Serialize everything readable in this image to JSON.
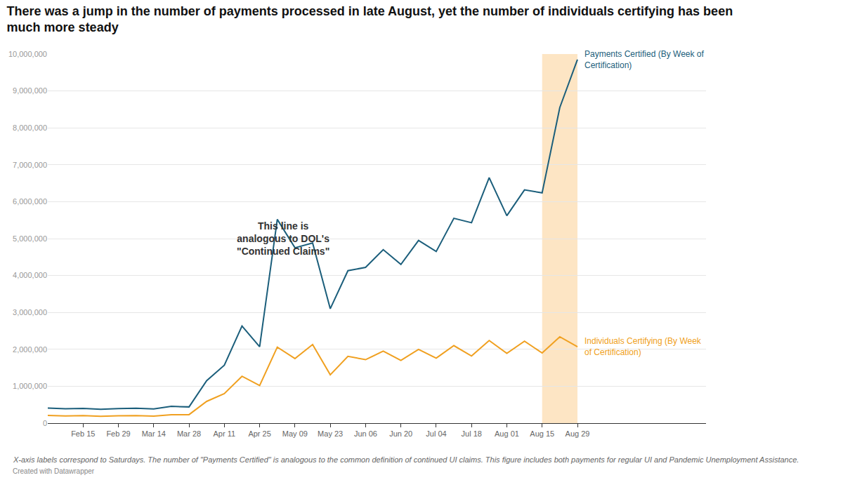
{
  "chart_data": {
    "type": "line",
    "title": "There was a jump in the number of payments processed in late August, yet the number of individuals certifying has been much more steady",
    "annotations": [
      "This line is analogous to DOL's \"Continued Claims\""
    ],
    "notes": "X-axis labels correspond to Saturdays. The number of \"Payments Certified\" is analogous to the common definition of continued UI claims. This figure includes both payments for regular UI and Pandemic Unemployment Assistance.",
    "credit": "Created with Datawrapper",
    "categories": [
      null,
      null,
      "Feb 15",
      null,
      "Feb 29",
      null,
      "Mar 14",
      null,
      "Mar 28",
      null,
      "Apr 11",
      null,
      "Apr 25",
      null,
      "May 09",
      null,
      "May 23",
      null,
      "Jun 06",
      null,
      "Jun 20",
      null,
      "Jul 04",
      null,
      "Jul 18",
      null,
      "Aug 01",
      null,
      "Aug 15",
      null,
      "Aug 29"
    ],
    "series": [
      {
        "name": "Payments Certified (By Week of Certification)",
        "color": "#1b5e7b",
        "values": [
          410000,
          390000,
          400000,
          375000,
          395000,
          405000,
          385000,
          455000,
          440000,
          1150000,
          1570000,
          2630000,
          2070000,
          5520000,
          4750000,
          4880000,
          3100000,
          4130000,
          4220000,
          4700000,
          4300000,
          4950000,
          4650000,
          5550000,
          5430000,
          6650000,
          5620000,
          6320000,
          6240000,
          8550000,
          9850000
        ]
      },
      {
        "name": "Individuals Certifying (By Week of Certification)",
        "color": "#f0a020",
        "values": [
          210000,
          195000,
          205000,
          185000,
          200000,
          205000,
          190000,
          230000,
          230000,
          590000,
          800000,
          1270000,
          1020000,
          2060000,
          1750000,
          2130000,
          1310000,
          1810000,
          1720000,
          1950000,
          1700000,
          2000000,
          1760000,
          2100000,
          1820000,
          2240000,
          1890000,
          2220000,
          1900000,
          2340000,
          2070000
        ]
      }
    ],
    "highlight": {
      "from": "Aug 15",
      "to": "Aug 29"
    },
    "ylim": [
      0,
      10000000
    ],
    "yticks": [
      0,
      {
        "value": 1000000,
        "label": "1,000,000"
      },
      {
        "value": 2000000,
        "label": "2,000,000"
      },
      {
        "value": 3000000,
        "label": "3,000,000"
      },
      {
        "value": 4000000,
        "label": "4,000,000"
      },
      {
        "value": 5000000,
        "label": "5,000,000"
      },
      {
        "value": 6000000,
        "label": "6,000,000"
      },
      {
        "value": 7000000,
        "label": "7,000,000"
      },
      {
        "value": 8000000,
        "label": "8,000,000"
      },
      {
        "value": 9000000,
        "label": "9,000,000"
      },
      {
        "value": 10000000,
        "label": "10,000,000"
      }
    ],
    "grid": true
  }
}
